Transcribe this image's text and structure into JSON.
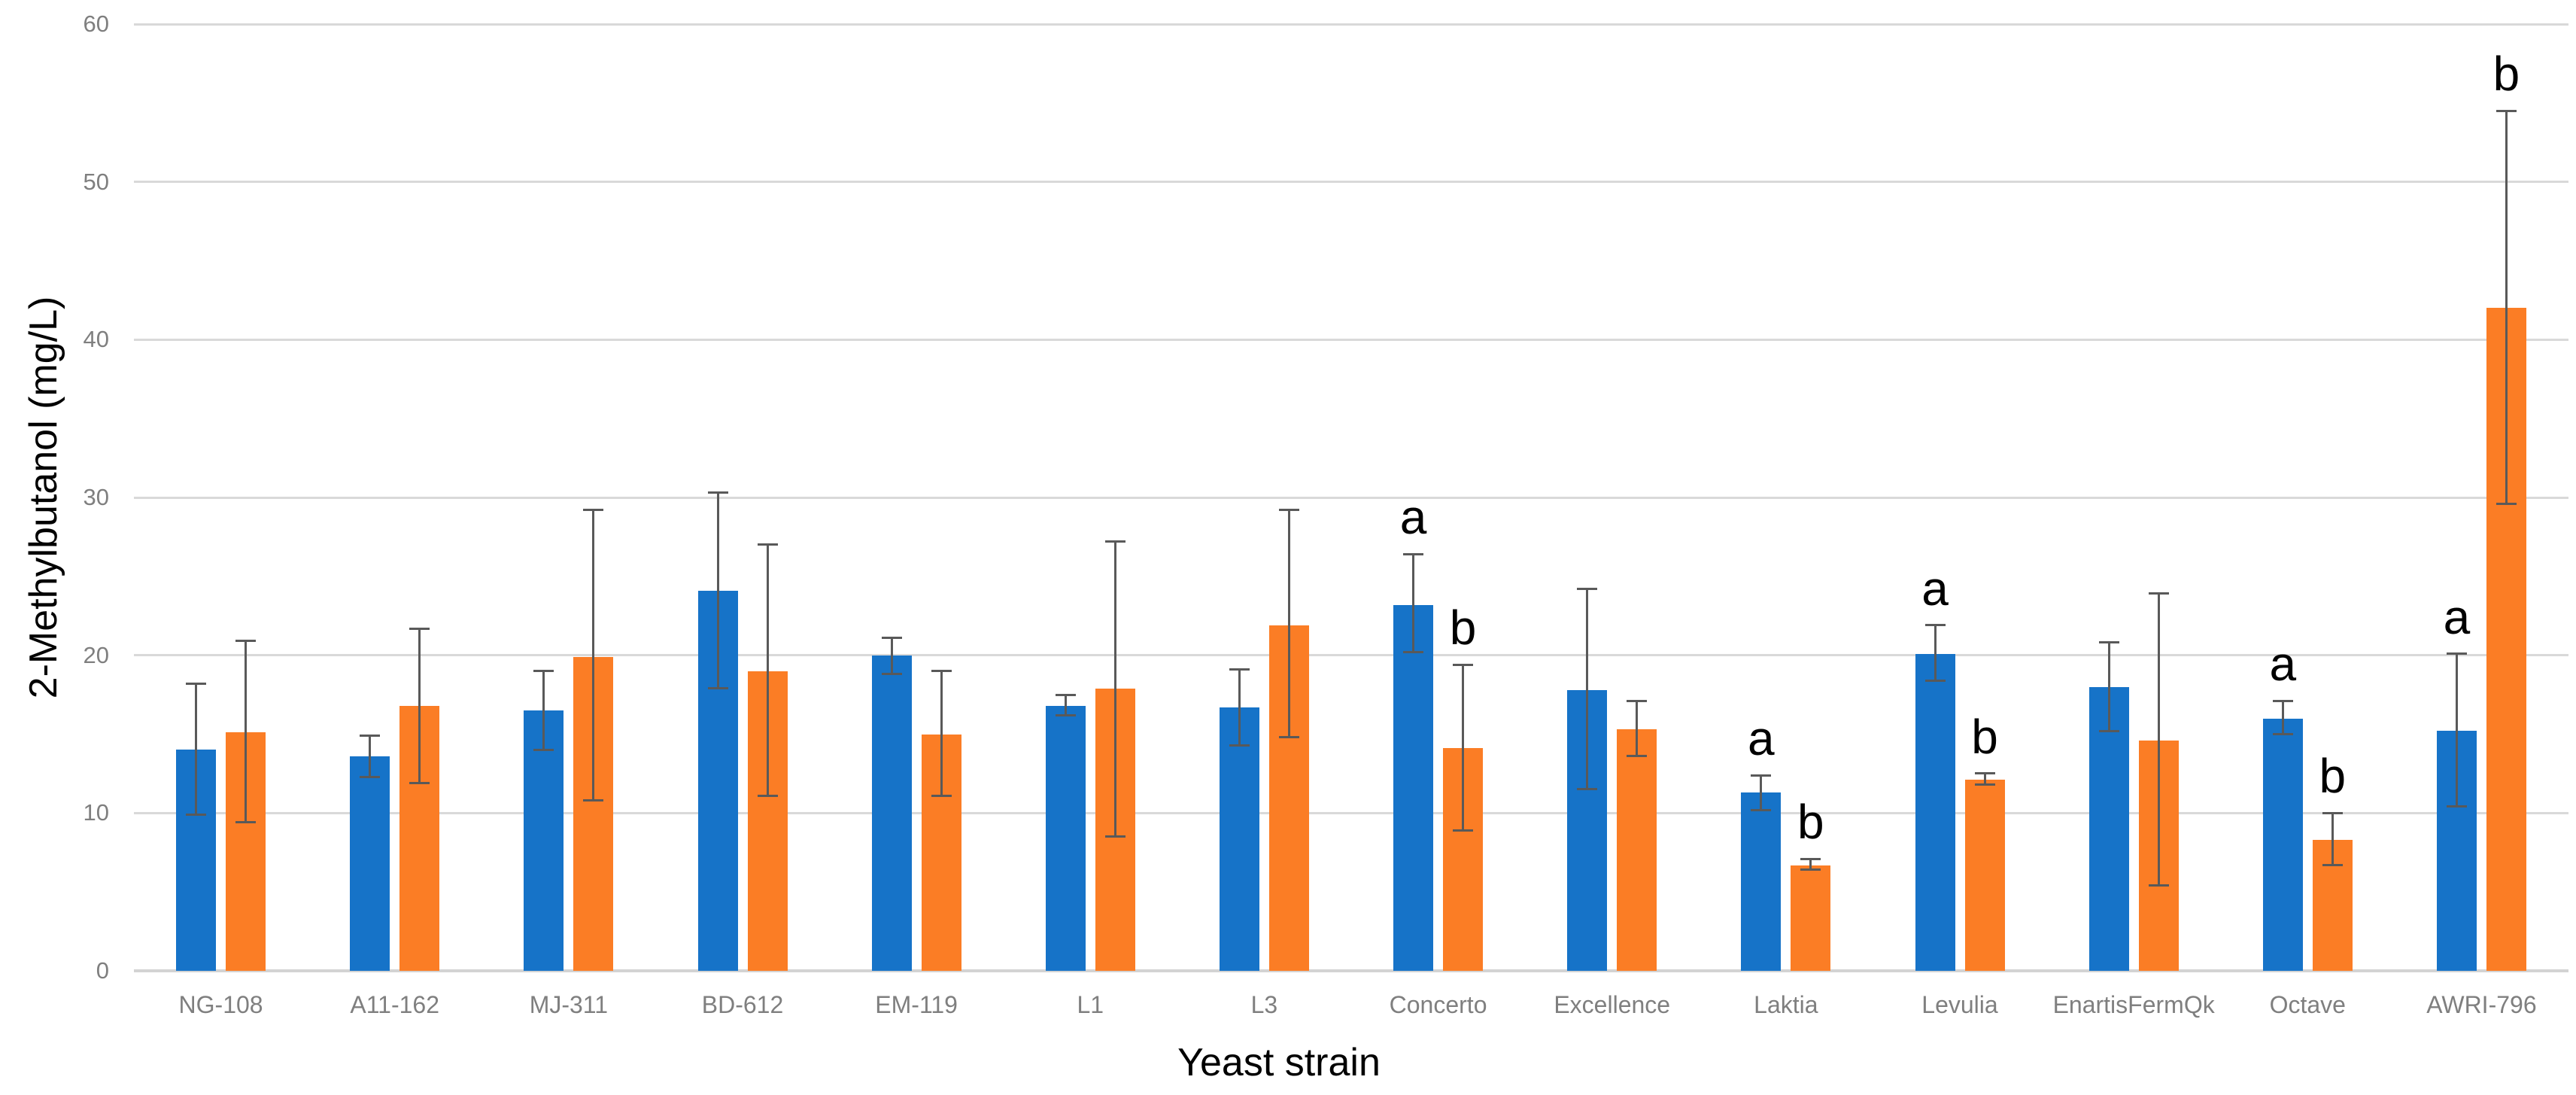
{
  "chart_data": {
    "type": "bar",
    "title": "",
    "xlabel": "Yeast strain",
    "ylabel": "2-Methylbutanol (mg/L)",
    "ylim": [
      0,
      60
    ],
    "yticks": [
      0,
      10,
      20,
      30,
      40,
      50,
      60
    ],
    "grid": "horizontal",
    "legend": "none",
    "categories": [
      "NG-108",
      "A11-162",
      "MJ-311",
      "BD-612",
      "EM-119",
      "L1",
      "L3",
      "Concerto",
      "Excellence",
      "Laktia",
      "Levulia",
      "EnartisFermQk",
      "Octave",
      "AWRI-796"
    ],
    "series": [
      {
        "name": "blue-series",
        "color": "#1673c8",
        "values": [
          14.0,
          13.6,
          16.5,
          24.1,
          20.0,
          16.8,
          16.7,
          23.2,
          17.8,
          11.3,
          20.1,
          18.0,
          16.0,
          15.2
        ],
        "err_low": [
          9.9,
          12.3,
          14.0,
          17.9,
          18.8,
          16.2,
          14.3,
          20.2,
          11.5,
          10.2,
          18.4,
          15.2,
          15.0,
          10.4
        ],
        "err_high": [
          18.2,
          14.9,
          19.0,
          30.3,
          21.1,
          17.5,
          19.1,
          26.4,
          24.2,
          12.4,
          21.9,
          20.8,
          17.1,
          20.1
        ],
        "sig": [
          "",
          "",
          "",
          "",
          "",
          "",
          "",
          "a",
          "",
          "a",
          "a",
          "",
          "a",
          "a"
        ]
      },
      {
        "name": "orange-series",
        "color": "#fb7d25",
        "values": [
          15.1,
          16.8,
          19.9,
          19.0,
          15.0,
          17.9,
          21.9,
          14.1,
          15.3,
          6.7,
          12.1,
          14.6,
          8.3,
          42.0
        ],
        "err_low": [
          9.4,
          11.9,
          10.8,
          11.1,
          11.1,
          8.5,
          14.8,
          8.9,
          13.6,
          6.4,
          11.8,
          5.4,
          6.7,
          29.6
        ],
        "err_high": [
          20.9,
          21.7,
          29.2,
          27.0,
          19.0,
          27.2,
          29.2,
          19.4,
          17.1,
          7.1,
          12.5,
          23.9,
          10.0,
          54.5
        ],
        "sig": [
          "",
          "",
          "",
          "",
          "",
          "",
          "",
          "b",
          "",
          "b",
          "b",
          "",
          "b",
          "b"
        ]
      }
    ],
    "style": {
      "gridline_color": "#d9d9d9",
      "error_bar_color": "#595959",
      "tick_label_color": "#7f7f7f",
      "axis_title_color": "#000000",
      "background": "#ffffff"
    }
  }
}
